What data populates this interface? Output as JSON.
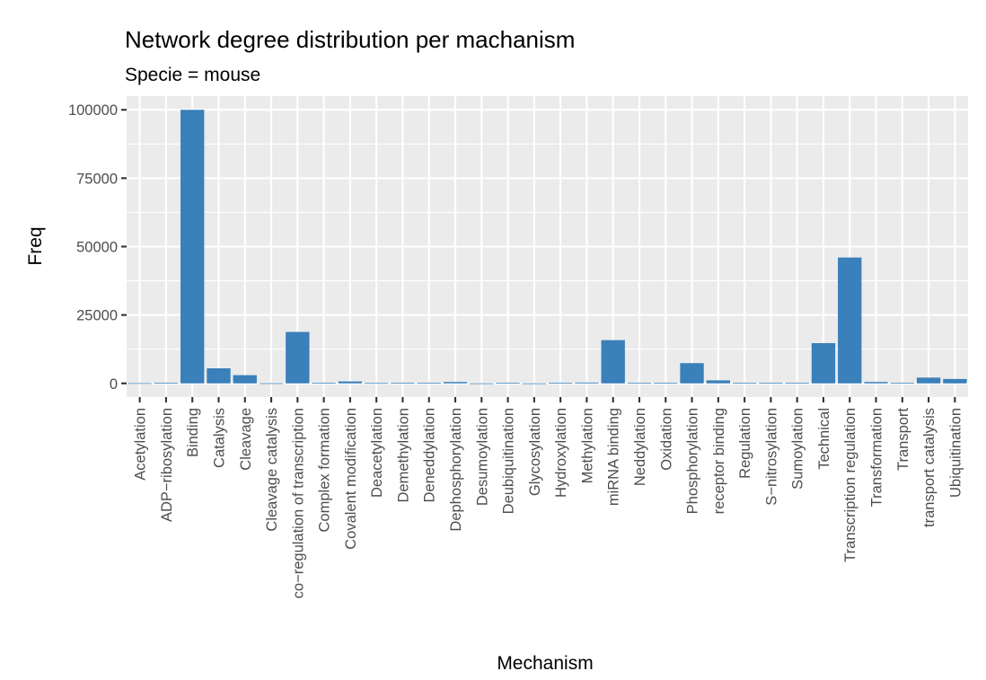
{
  "chart_data": {
    "type": "bar",
    "title": "Network degree distribution per machanism",
    "subtitle": "Specie = mouse",
    "xlabel": "Mechanism",
    "ylabel": "Freq",
    "ylim": [
      -5000,
      105000
    ],
    "y_ticks": [
      0,
      25000,
      50000,
      75000,
      100000
    ],
    "y_tick_labels": [
      "0",
      "25000",
      "50000",
      "75000",
      "100000"
    ],
    "grid": true,
    "legend": "none",
    "bar_color": "#3a80ba",
    "panel_color": "#ebebeb",
    "categories": [
      "Acetylation",
      "ADP−ribosylation",
      "Binding",
      "Catalysis",
      "Cleavage",
      "Cleavage catalysis",
      "co−regulation of transcription",
      "Complex formation",
      "Covalent modification",
      "Deacetylation",
      "Demethylation",
      "Deneddylation",
      "Dephosphorylation",
      "Desumoylation",
      "Deubiquitination",
      "Glycosylation",
      "Hydroxylation",
      "Methylation",
      "miRNA binding",
      "Neddylation",
      "Oxidation",
      "Phosphorylation",
      "receptor binding",
      "Regulation",
      "S−nitrosylation",
      "Sumoylation",
      "Technical",
      "Transcription regulation",
      "Transformation",
      "Transport",
      "transport catalysis",
      "Ubiquitination"
    ],
    "values": [
      100,
      200,
      100000,
      5500,
      3000,
      60,
      18800,
      250,
      700,
      150,
      250,
      200,
      500,
      30,
      250,
      20,
      250,
      300,
      15800,
      200,
      250,
      7400,
      1100,
      250,
      250,
      250,
      14700,
      46000,
      500,
      250,
      2100,
      1600
    ]
  }
}
